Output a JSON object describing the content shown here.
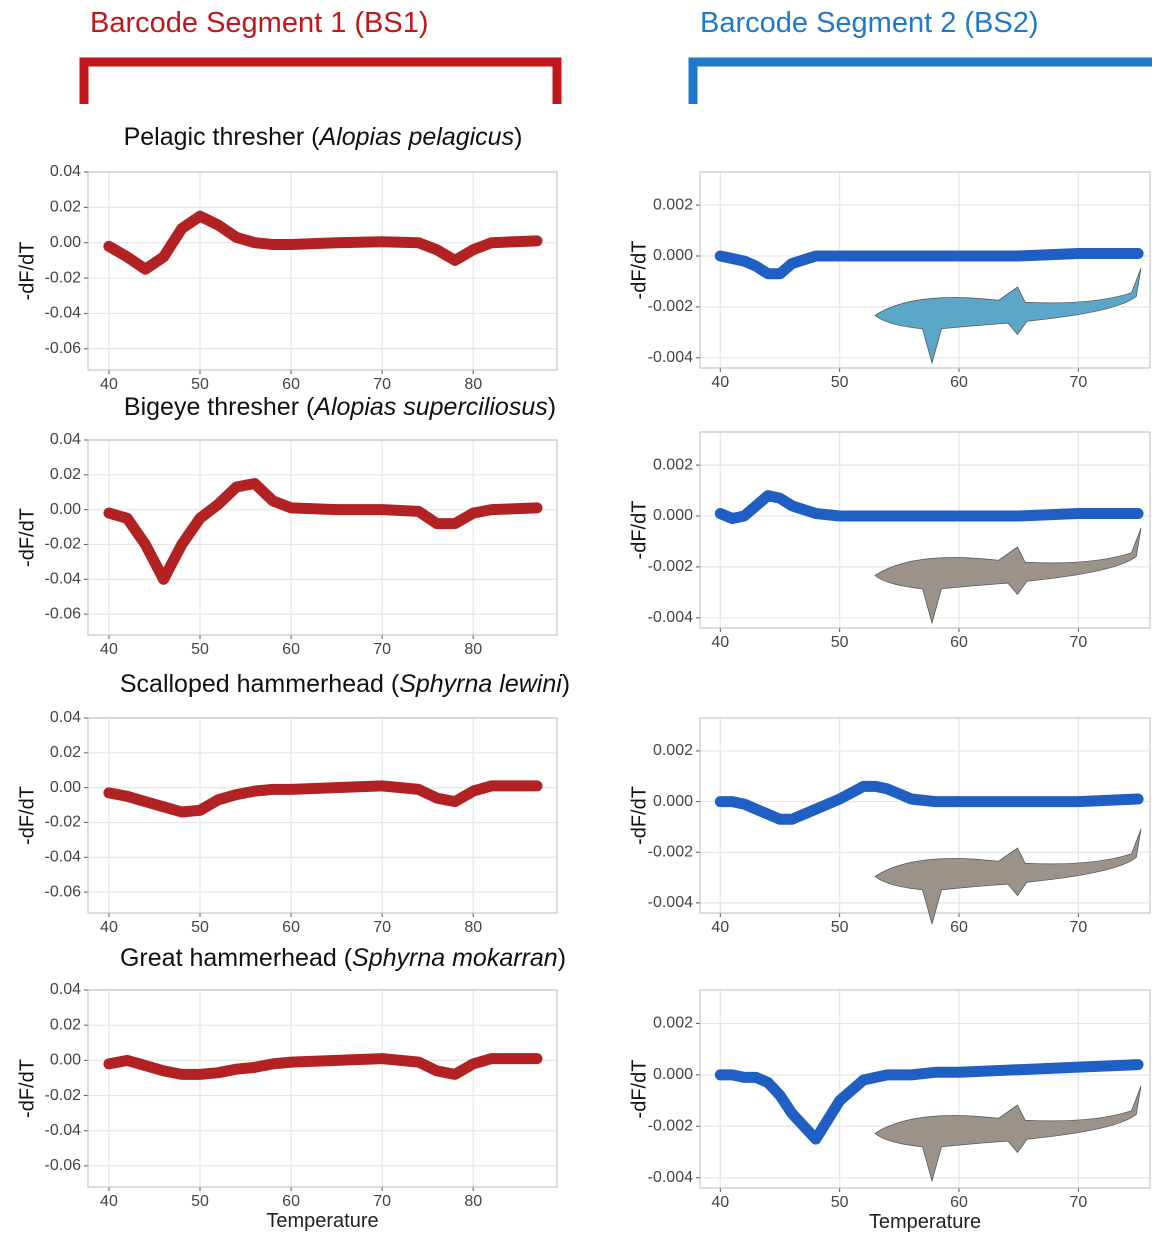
{
  "header": {
    "left": "Barcode Segment 1 (BS1)",
    "right": "Barcode Segment 2 (BS2)"
  },
  "chart_data": [
    {
      "type": "line",
      "title_parts": [
        "Pelagic thresher (",
        "Alopias pelagicus",
        ")"
      ],
      "y_label": "-dF/dT",
      "color": "#b22222",
      "x": [
        40,
        42,
        44,
        46,
        48,
        50,
        52,
        54,
        56,
        58,
        60,
        65,
        70,
        74,
        76,
        78,
        80,
        82,
        87
      ],
      "values": [
        -0.002,
        -0.008,
        -0.015,
        -0.008,
        0.008,
        0.015,
        0.01,
        0.003,
        0.0,
        -0.001,
        -0.001,
        0,
        0.0005,
        0,
        -0.004,
        -0.01,
        -0.004,
        0.0,
        0.001
      ],
      "xlim": [
        37.7,
        89.2
      ],
      "ylim": [
        -0.072,
        0.04
      ],
      "xticks": [
        40,
        50,
        60,
        70,
        80
      ],
      "yticks": [
        0.04,
        0.02,
        {
          "value": 0,
          "label": "0.00"
        },
        -0.02,
        -0.04,
        -0.06
      ],
      "grid": true
    },
    {
      "type": "line",
      "title_parts": [
        "Bigeye thresher (",
        "Alopias superciliosus",
        ")"
      ],
      "y_label": "-dF/dT",
      "color": "#b22222",
      "x": [
        40,
        42,
        44,
        46,
        48,
        50,
        52,
        54,
        56,
        58,
        60,
        65,
        70,
        74,
        76,
        78,
        80,
        82,
        87
      ],
      "values": [
        -0.002,
        -0.005,
        -0.02,
        -0.04,
        -0.02,
        -0.005,
        0.003,
        0.013,
        0.015,
        0.005,
        0.001,
        0,
        0,
        -0.001,
        -0.008,
        -0.008,
        -0.002,
        0.0,
        0.001
      ],
      "xlim": [
        37.7,
        89.2
      ],
      "ylim": [
        -0.072,
        0.04
      ],
      "xticks": [
        40,
        50,
        60,
        70,
        80
      ],
      "yticks": [
        0.04,
        0.02,
        {
          "value": 0,
          "label": "0.00"
        },
        -0.02,
        -0.04,
        -0.06
      ],
      "grid": true
    },
    {
      "type": "line",
      "title_parts": [
        "Scalloped hammerhead (",
        "Sphyrna lewini",
        ")"
      ],
      "y_label": "-dF/dT",
      "color": "#b22222",
      "x": [
        40,
        42,
        44,
        46,
        48,
        50,
        52,
        54,
        56,
        58,
        60,
        65,
        70,
        74,
        76,
        78,
        80,
        82,
        87
      ],
      "values": [
        -0.003,
        -0.005,
        -0.008,
        -0.011,
        -0.014,
        -0.013,
        -0.007,
        -0.004,
        -0.002,
        -0.001,
        -0.001,
        0,
        0.001,
        -0.001,
        -0.006,
        -0.008,
        -0.002,
        0.001,
        0.001
      ],
      "xlim": [
        37.7,
        89.2
      ],
      "ylim": [
        -0.072,
        0.04
      ],
      "xticks": [
        40,
        50,
        60,
        70,
        80
      ],
      "yticks": [
        0.04,
        0.02,
        {
          "value": 0,
          "label": "0.00"
        },
        -0.02,
        -0.04,
        -0.06
      ],
      "grid": true
    },
    {
      "type": "line",
      "title_parts": [
        "Great hammerhead (",
        "Sphyrna mokarran",
        ")"
      ],
      "y_label": "-dF/dT",
      "x_label": "Temperature",
      "color": "#b22222",
      "x": [
        40,
        42,
        44,
        46,
        48,
        50,
        52,
        54,
        56,
        58,
        60,
        65,
        70,
        74,
        76,
        78,
        80,
        82,
        87
      ],
      "values": [
        -0.002,
        0.0,
        -0.003,
        -0.006,
        -0.008,
        -0.008,
        -0.007,
        -0.005,
        -0.004,
        -0.002,
        -0.001,
        0,
        0.001,
        -0.001,
        -0.006,
        -0.008,
        -0.002,
        0.001,
        0.001
      ],
      "xlim": [
        37.7,
        89.2
      ],
      "ylim": [
        -0.072,
        0.04
      ],
      "xticks": [
        40,
        50,
        60,
        70,
        80
      ],
      "yticks": [
        0.04,
        0.02,
        {
          "value": 0,
          "label": "0.00"
        },
        -0.02,
        -0.04,
        -0.06
      ],
      "grid": true
    },
    {
      "type": "line",
      "y_label": "-dF/dT",
      "color": "#1f5fc4",
      "x": [
        40,
        41,
        42,
        43,
        44,
        45,
        46,
        48,
        50,
        52,
        53,
        54,
        56,
        58,
        60,
        65,
        70,
        75
      ],
      "values": [
        0,
        -0.0001,
        -0.0002,
        -0.0004,
        -0.0007,
        -0.0007,
        -0.0003,
        0,
        0,
        0,
        0,
        0,
        0,
        0,
        0,
        0,
        0.0001,
        0.0001
      ],
      "xlim": [
        38.3,
        76
      ],
      "ylim": [
        -0.0044,
        0.0033
      ],
      "xticks": [
        40,
        50,
        60,
        70
      ],
      "yticks": [
        0.002,
        {
          "value": 0,
          "label": "0.000"
        },
        -0.002,
        -0.004
      ],
      "grid": true
    },
    {
      "type": "line",
      "y_label": "-dF/dT",
      "color": "#1f5fc4",
      "x": [
        40,
        41,
        42,
        43,
        44,
        45,
        46,
        48,
        50,
        52,
        53,
        54,
        56,
        58,
        60,
        65,
        70,
        75
      ],
      "values": [
        0.0001,
        -0.0001,
        0,
        0.0004,
        0.0008,
        0.0007,
        0.0004,
        0.0001,
        0,
        0,
        0,
        0,
        0,
        0,
        0,
        0,
        0.0001,
        0.0001
      ],
      "xlim": [
        38.3,
        76
      ],
      "ylim": [
        -0.0044,
        0.0033
      ],
      "xticks": [
        40,
        50,
        60,
        70
      ],
      "yticks": [
        0.002,
        {
          "value": 0,
          "label": "0.000"
        },
        -0.002,
        -0.004
      ],
      "grid": true
    },
    {
      "type": "line",
      "y_label": "-dF/dT",
      "color": "#1f5fc4",
      "x": [
        40,
        41,
        42,
        43,
        44,
        45,
        46,
        48,
        50,
        52,
        53,
        54,
        56,
        58,
        60,
        65,
        70,
        75
      ],
      "values": [
        0,
        0,
        -0.0001,
        -0.0003,
        -0.0005,
        -0.0007,
        -0.0007,
        -0.0003,
        0.0001,
        0.0006,
        0.0006,
        0.0005,
        0.0001,
        0,
        0,
        0,
        0,
        0.0001
      ],
      "xlim": [
        38.3,
        76
      ],
      "ylim": [
        -0.0044,
        0.0033
      ],
      "xticks": [
        40,
        50,
        60,
        70
      ],
      "yticks": [
        0.002,
        {
          "value": 0,
          "label": "0.000"
        },
        -0.002,
        -0.004
      ],
      "grid": true
    },
    {
      "type": "line",
      "y_label": "-dF/dT",
      "x_label": "Temperature",
      "color": "#1f5fc4",
      "x": [
        40,
        41,
        42,
        43,
        44,
        45,
        46,
        48,
        50,
        52,
        53,
        54,
        56,
        58,
        60,
        65,
        70,
        75
      ],
      "values": [
        0,
        0,
        -0.0001,
        -0.0001,
        -0.0003,
        -0.0008,
        -0.0015,
        -0.0025,
        -0.001,
        -0.0002,
        -0.0001,
        0,
        0,
        0.0001,
        0.0001,
        0.0002,
        0.0003,
        0.0004
      ],
      "xlim": [
        38.3,
        76
      ],
      "ylim": [
        -0.0044,
        0.0033
      ],
      "xticks": [
        40,
        50,
        60,
        70
      ],
      "yticks": [
        0.002,
        {
          "value": 0,
          "label": "0.000"
        },
        -0.002,
        -0.004
      ],
      "grid": true
    }
  ]
}
